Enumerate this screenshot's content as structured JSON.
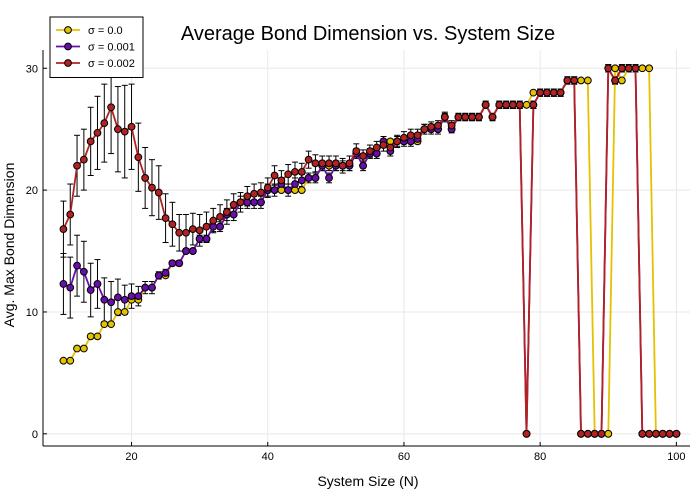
{
  "chart_data": {
    "type": "line",
    "title": "Average Bond Dimension vs. System Size",
    "xlabel": "System Size (N)",
    "ylabel": "Avg. Max Bond Dimension",
    "xlim": [
      7,
      102
    ],
    "ylim": [
      -1,
      31.5
    ],
    "xticks": [
      20,
      40,
      60,
      80,
      100
    ],
    "yticks": [
      0,
      10,
      20,
      30
    ],
    "grid": true,
    "legend_position": "top-left",
    "series": [
      {
        "name": "σ = 0.0",
        "color": "#e5c100",
        "x": [
          10,
          11,
          12,
          13,
          14,
          15,
          16,
          17,
          18,
          19,
          20,
          21,
          22,
          23,
          24,
          25,
          26,
          27,
          28,
          29,
          30,
          31,
          32,
          33,
          34,
          35,
          36,
          37,
          38,
          39,
          40,
          41,
          42,
          43,
          44,
          45,
          46,
          47,
          48,
          49,
          50,
          51,
          52,
          53,
          54,
          55,
          56,
          57,
          58,
          59,
          60,
          61,
          62,
          63,
          64,
          65,
          66,
          67,
          68,
          69,
          70,
          71,
          72,
          73,
          74,
          75,
          76,
          77,
          78,
          79,
          80,
          81,
          82,
          83,
          84,
          85,
          86,
          87,
          88,
          89,
          90,
          91,
          92,
          93,
          94,
          95,
          96,
          97,
          98,
          99,
          100
        ],
        "y": [
          6,
          6,
          7,
          7,
          8,
          8,
          9,
          9,
          10,
          10,
          11,
          11,
          12,
          12,
          13,
          13,
          14,
          14,
          15,
          15,
          16,
          16,
          17,
          17,
          18,
          18,
          19,
          19,
          19,
          19,
          20,
          20,
          20,
          20,
          20,
          20,
          21,
          21,
          22,
          22,
          22,
          22,
          22,
          23,
          22,
          23,
          23,
          24,
          24,
          24,
          24,
          24,
          24,
          25,
          25,
          25,
          26,
          25,
          26,
          26,
          26,
          26,
          27,
          26,
          27,
          27,
          27,
          27,
          27,
          28,
          28,
          28,
          28,
          28,
          29,
          29,
          29,
          29,
          0,
          0,
          0,
          30,
          29,
          30,
          30,
          30,
          30,
          0,
          0,
          0,
          0
        ]
      },
      {
        "name": "σ = 0.001",
        "color": "#6a0dad",
        "x": [
          10,
          11,
          12,
          13,
          14,
          15,
          16,
          17,
          18,
          19,
          20,
          21,
          22,
          23,
          24,
          25,
          26,
          27,
          28,
          29,
          30,
          31,
          32,
          33,
          34,
          35,
          36,
          37,
          38,
          39,
          40,
          41,
          42,
          43,
          44,
          45,
          46,
          47,
          48,
          49,
          50,
          51,
          52,
          53,
          54,
          55,
          56,
          57,
          58,
          59,
          60,
          61,
          62,
          63,
          64,
          65,
          66,
          67,
          68,
          69,
          70,
          71,
          72,
          73,
          74,
          75,
          76,
          77,
          78,
          79,
          80,
          81,
          82,
          83,
          84,
          85,
          86,
          87,
          88,
          89,
          90,
          91,
          92,
          93,
          94,
          95,
          96,
          97,
          98,
          99,
          100
        ],
        "y": [
          12.3,
          12.0,
          13.8,
          13.3,
          11.8,
          12.3,
          11.0,
          10.8,
          11.2,
          11.0,
          11.3,
          11.3,
          12.0,
          12.0,
          13.0,
          13.2,
          14.0,
          14.0,
          15.0,
          15.0,
          16.0,
          16.0,
          17.0,
          17.0,
          18.0,
          18.0,
          19.0,
          19.0,
          19.0,
          19.0,
          20.0,
          20.0,
          20.5,
          20.0,
          20.5,
          20.8,
          21.0,
          21.0,
          22.0,
          21.0,
          22.0,
          22.0,
          22.0,
          23.0,
          22.0,
          23.0,
          23.0,
          24.0,
          23.2,
          24.0,
          24.0,
          24.0,
          24.2,
          25.0,
          25.0,
          25.0,
          26.0,
          25.0,
          26.0,
          26.0,
          26.0,
          26.0,
          27.0,
          26.0,
          27.0,
          27.0,
          27.0,
          27.0,
          0,
          27.0,
          28.0,
          28.0,
          28.0,
          28.0,
          29.0,
          29.0,
          0,
          0,
          0,
          0,
          30.0,
          29.0,
          30.0,
          30.0,
          30.0,
          0,
          0,
          0,
          0,
          0,
          0
        ]
      },
      {
        "name": "σ = 0.002",
        "color": "#b22222",
        "x": [
          10,
          11,
          12,
          13,
          14,
          15,
          16,
          17,
          18,
          19,
          20,
          21,
          22,
          23,
          24,
          25,
          26,
          27,
          28,
          29,
          30,
          31,
          32,
          33,
          34,
          35,
          36,
          37,
          38,
          39,
          40,
          41,
          42,
          43,
          44,
          45,
          46,
          47,
          48,
          49,
          50,
          51,
          52,
          53,
          54,
          55,
          56,
          57,
          58,
          59,
          60,
          61,
          62,
          63,
          64,
          65,
          66,
          67,
          68,
          69,
          70,
          71,
          72,
          73,
          74,
          75,
          76,
          77,
          78,
          79,
          80,
          81,
          82,
          83,
          84,
          85,
          86,
          87,
          88,
          89,
          90,
          91,
          92,
          93,
          94,
          95,
          96,
          97,
          98,
          99,
          100
        ],
        "y": [
          16.8,
          18.0,
          22.0,
          22.5,
          24.0,
          24.7,
          25.5,
          26.8,
          25.0,
          24.8,
          25.2,
          22.7,
          21.0,
          20.2,
          19.8,
          17.7,
          17.2,
          16.5,
          16.5,
          16.8,
          16.7,
          17.0,
          17.5,
          17.8,
          18.2,
          18.8,
          19.0,
          19.5,
          19.7,
          19.8,
          20.2,
          21.2,
          20.8,
          21.3,
          21.5,
          21.5,
          22.5,
          22.2,
          22.2,
          22.2,
          22.2,
          22.0,
          22.2,
          23.2,
          22.8,
          23.2,
          23.5,
          23.7,
          23.5,
          24.0,
          24.3,
          24.5,
          24.5,
          25.0,
          25.2,
          25.3,
          26.0,
          25.3,
          26.0,
          26.0,
          26.0,
          26.0,
          27.0,
          26.0,
          27.0,
          27.0,
          27.0,
          27.0,
          0,
          27.0,
          28.0,
          28.0,
          28.0,
          28.0,
          29.0,
          29.0,
          0,
          0,
          0,
          0,
          30.0,
          29.0,
          30.0,
          30.0,
          30.0,
          0,
          0,
          0,
          0,
          0,
          0
        ],
        "err": [
          2.3,
          2.5,
          2.5,
          2.5,
          2.8,
          3.0,
          3.2,
          3.8,
          3.5,
          3.8,
          3.5,
          2.8,
          2.5,
          2.3,
          2.2,
          2.0,
          1.8,
          1.5,
          1.5,
          1.3,
          1.3,
          1.2,
          1.0,
          1.0,
          1.0,
          0.9,
          0.8,
          0.8,
          0.8,
          0.8,
          0.8,
          0.8,
          0.8,
          0.8,
          0.8,
          0.7,
          0.7,
          0.7,
          0.6,
          0.6,
          0.6,
          0.6,
          0.6,
          0.6,
          0.5,
          0.5,
          0.5,
          0.5,
          0.5,
          0.5,
          0.5,
          0.5,
          0.5,
          0.4,
          0.4,
          0.4,
          0.4,
          0.4,
          0.3,
          0.3,
          0.3,
          0.3,
          0.3,
          0.3,
          0.3,
          0.3,
          0.3,
          0.3,
          0,
          0.3,
          0.3,
          0.3,
          0.3,
          0.3,
          0.3,
          0.3,
          0,
          0,
          0,
          0,
          0.3,
          0.3,
          0.3,
          0.3,
          0.3,
          0,
          0,
          0,
          0,
          0,
          0
        ]
      }
    ],
    "error_series_001": [
      2.5,
      2.5,
      2.5,
      2.5,
      2.2,
      2.0,
      1.8,
      1.7,
      1.5,
      1.2,
      1.0,
      0.8,
      0.5,
      0.5,
      0.3,
      0.3,
      0.2,
      0.2,
      0.2,
      0.2,
      0.3,
      0.3,
      0.4,
      0.4,
      0.5,
      0.5,
      0.5,
      0.5,
      0.5,
      0.5,
      0.5,
      0.5,
      0.5,
      0.5,
      0.5,
      0.5,
      0.4,
      0.4,
      0.4,
      0.4,
      0.4,
      0.4,
      0.4,
      0.4,
      0.4,
      0.4,
      0.4,
      0.4,
      0.4,
      0.4,
      0.4,
      0.4,
      0.4,
      0.4,
      0.4,
      0.4,
      0.3,
      0.3,
      0.3,
      0.3,
      0.3,
      0.3,
      0.3,
      0.3,
      0.3,
      0.3,
      0.3,
      0.3,
      0,
      0.3,
      0.3,
      0.3,
      0.3,
      0.3,
      0.3,
      0.3,
      0,
      0,
      0,
      0,
      0.3,
      0.3,
      0.3,
      0.3,
      0.3,
      0,
      0,
      0,
      0,
      0,
      0
    ]
  }
}
